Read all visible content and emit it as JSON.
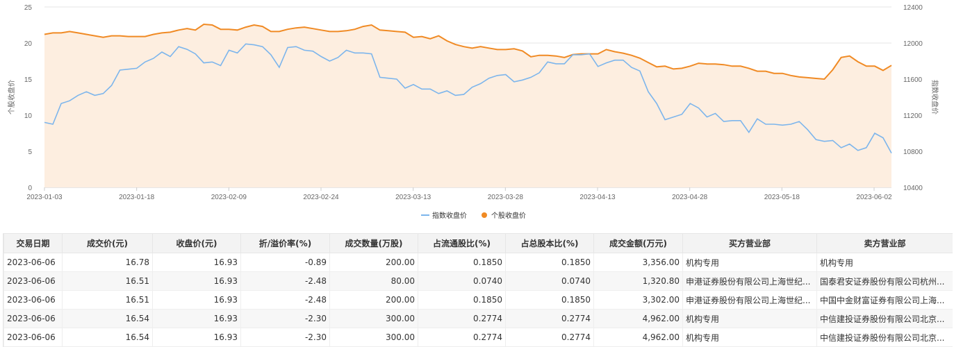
{
  "chart_data": {
    "type": "line",
    "x_ticks": [
      "2023-01-03",
      "2023-01-18",
      "2023-02-09",
      "2023-02-24",
      "2023-03-13",
      "2023-03-28",
      "2023-04-13",
      "2023-04-28",
      "2023-05-18",
      "2023-06-02"
    ],
    "left_axis": {
      "label": "个股收盘价",
      "ticks": [
        "0",
        "5",
        "10",
        "15",
        "20",
        "25"
      ],
      "range": [
        0,
        25
      ]
    },
    "right_axis": {
      "label": "指数收盘价",
      "ticks": [
        "10400",
        "10800",
        "11200",
        "11600",
        "12000",
        "12400"
      ],
      "range": [
        10400,
        12400
      ]
    },
    "series": [
      {
        "name": "指数收盘价",
        "axis": "right",
        "type": "line",
        "color": "#7cb5ec",
        "values": [
          11120,
          11100,
          11330,
          11360,
          11420,
          11460,
          11420,
          11440,
          11530,
          11700,
          11710,
          11720,
          11790,
          11830,
          11900,
          11850,
          11960,
          11930,
          11880,
          11780,
          11790,
          11750,
          11920,
          11890,
          11990,
          11980,
          11960,
          11870,
          11730,
          11950,
          11960,
          11920,
          11910,
          11850,
          11800,
          11840,
          11920,
          11890,
          11890,
          11880,
          11620,
          11610,
          11600,
          11500,
          11540,
          11490,
          11490,
          11440,
          11470,
          11420,
          11430,
          11510,
          11550,
          11610,
          11640,
          11650,
          11570,
          11590,
          11620,
          11670,
          11790,
          11770,
          11770,
          11870,
          11870,
          11880,
          11740,
          11780,
          11810,
          11810,
          11730,
          11690,
          11460,
          11330,
          11150,
          11180,
          11210,
          11330,
          11280,
          11180,
          11220,
          11130,
          11140,
          11140,
          11010,
          11160,
          11100,
          11100,
          11090,
          11100,
          11130,
          11040,
          10930,
          10910,
          10920,
          10840,
          10880,
          10810,
          10840,
          11000,
          10950,
          10780
        ]
      },
      {
        "name": "个股收盘价",
        "axis": "left",
        "type": "area-line",
        "color": "#f08a24",
        "fill": "#fdeee0",
        "values": [
          21.2,
          21.4,
          21.4,
          21.6,
          21.4,
          21.2,
          21.0,
          20.8,
          21.0,
          21.0,
          20.9,
          20.9,
          20.9,
          21.2,
          21.4,
          21.5,
          21.8,
          22.0,
          21.8,
          22.6,
          22.5,
          21.9,
          21.9,
          21.8,
          22.2,
          22.5,
          22.3,
          21.6,
          21.6,
          21.9,
          22.1,
          22.2,
          22.0,
          21.8,
          21.6,
          21.6,
          21.7,
          21.9,
          22.3,
          22.5,
          21.8,
          21.7,
          21.6,
          21.5,
          20.8,
          20.9,
          20.6,
          21.0,
          20.3,
          19.8,
          19.5,
          19.3,
          19.5,
          19.3,
          19.1,
          19.1,
          19.2,
          18.9,
          18.1,
          18.3,
          18.3,
          18.2,
          18.0,
          18.4,
          18.5,
          18.5,
          18.5,
          19.1,
          18.8,
          18.6,
          18.3,
          17.9,
          17.3,
          16.7,
          16.8,
          16.4,
          16.5,
          16.8,
          17.2,
          17.1,
          17.1,
          17.0,
          16.8,
          16.8,
          16.5,
          16.1,
          16.1,
          15.8,
          15.8,
          15.5,
          15.3,
          15.2,
          15.1,
          15.0,
          16.3,
          18.0,
          18.2,
          17.4,
          16.8,
          16.8,
          16.2,
          16.9
        ]
      }
    ],
    "legend": [
      "指数收盘价",
      "个股收盘价"
    ],
    "legend_position": "bottom-center",
    "grid": true
  },
  "table": {
    "headers": [
      "交易日期",
      "成交价(元)",
      "收盘价(元)",
      "折/溢价率(%)",
      "成交数量(万股)",
      "占流通股比(%)",
      "占总股本比(%)",
      "成交金额(万元)",
      "买方营业部",
      "卖方营业部"
    ],
    "rows": [
      [
        "2023-06-06",
        "16.78",
        "16.93",
        "-0.89",
        "200.00",
        "0.1850",
        "0.1850",
        "3,356.00",
        "机构专用",
        "机构专用"
      ],
      [
        "2023-06-06",
        "16.51",
        "16.93",
        "-2.48",
        "80.00",
        "0.0740",
        "0.0740",
        "1,320.80",
        "申港证券股份有限公司上海世纪...",
        "国泰君安证券股份有限公司杭州..."
      ],
      [
        "2023-06-06",
        "16.51",
        "16.93",
        "-2.48",
        "200.00",
        "0.1850",
        "0.1850",
        "3,302.00",
        "申港证券股份有限公司上海世纪...",
        "中国中金财富证券有限公司上海..."
      ],
      [
        "2023-06-06",
        "16.54",
        "16.93",
        "-2.30",
        "300.00",
        "0.2774",
        "0.2774",
        "4,962.00",
        "机构专用",
        "中信建投证券股份有限公司北京..."
      ],
      [
        "2023-06-06",
        "16.54",
        "16.93",
        "-2.30",
        "300.00",
        "0.2774",
        "0.2774",
        "4,962.00",
        "机构专用",
        "中信建投证券股份有限公司北京..."
      ]
    ]
  }
}
